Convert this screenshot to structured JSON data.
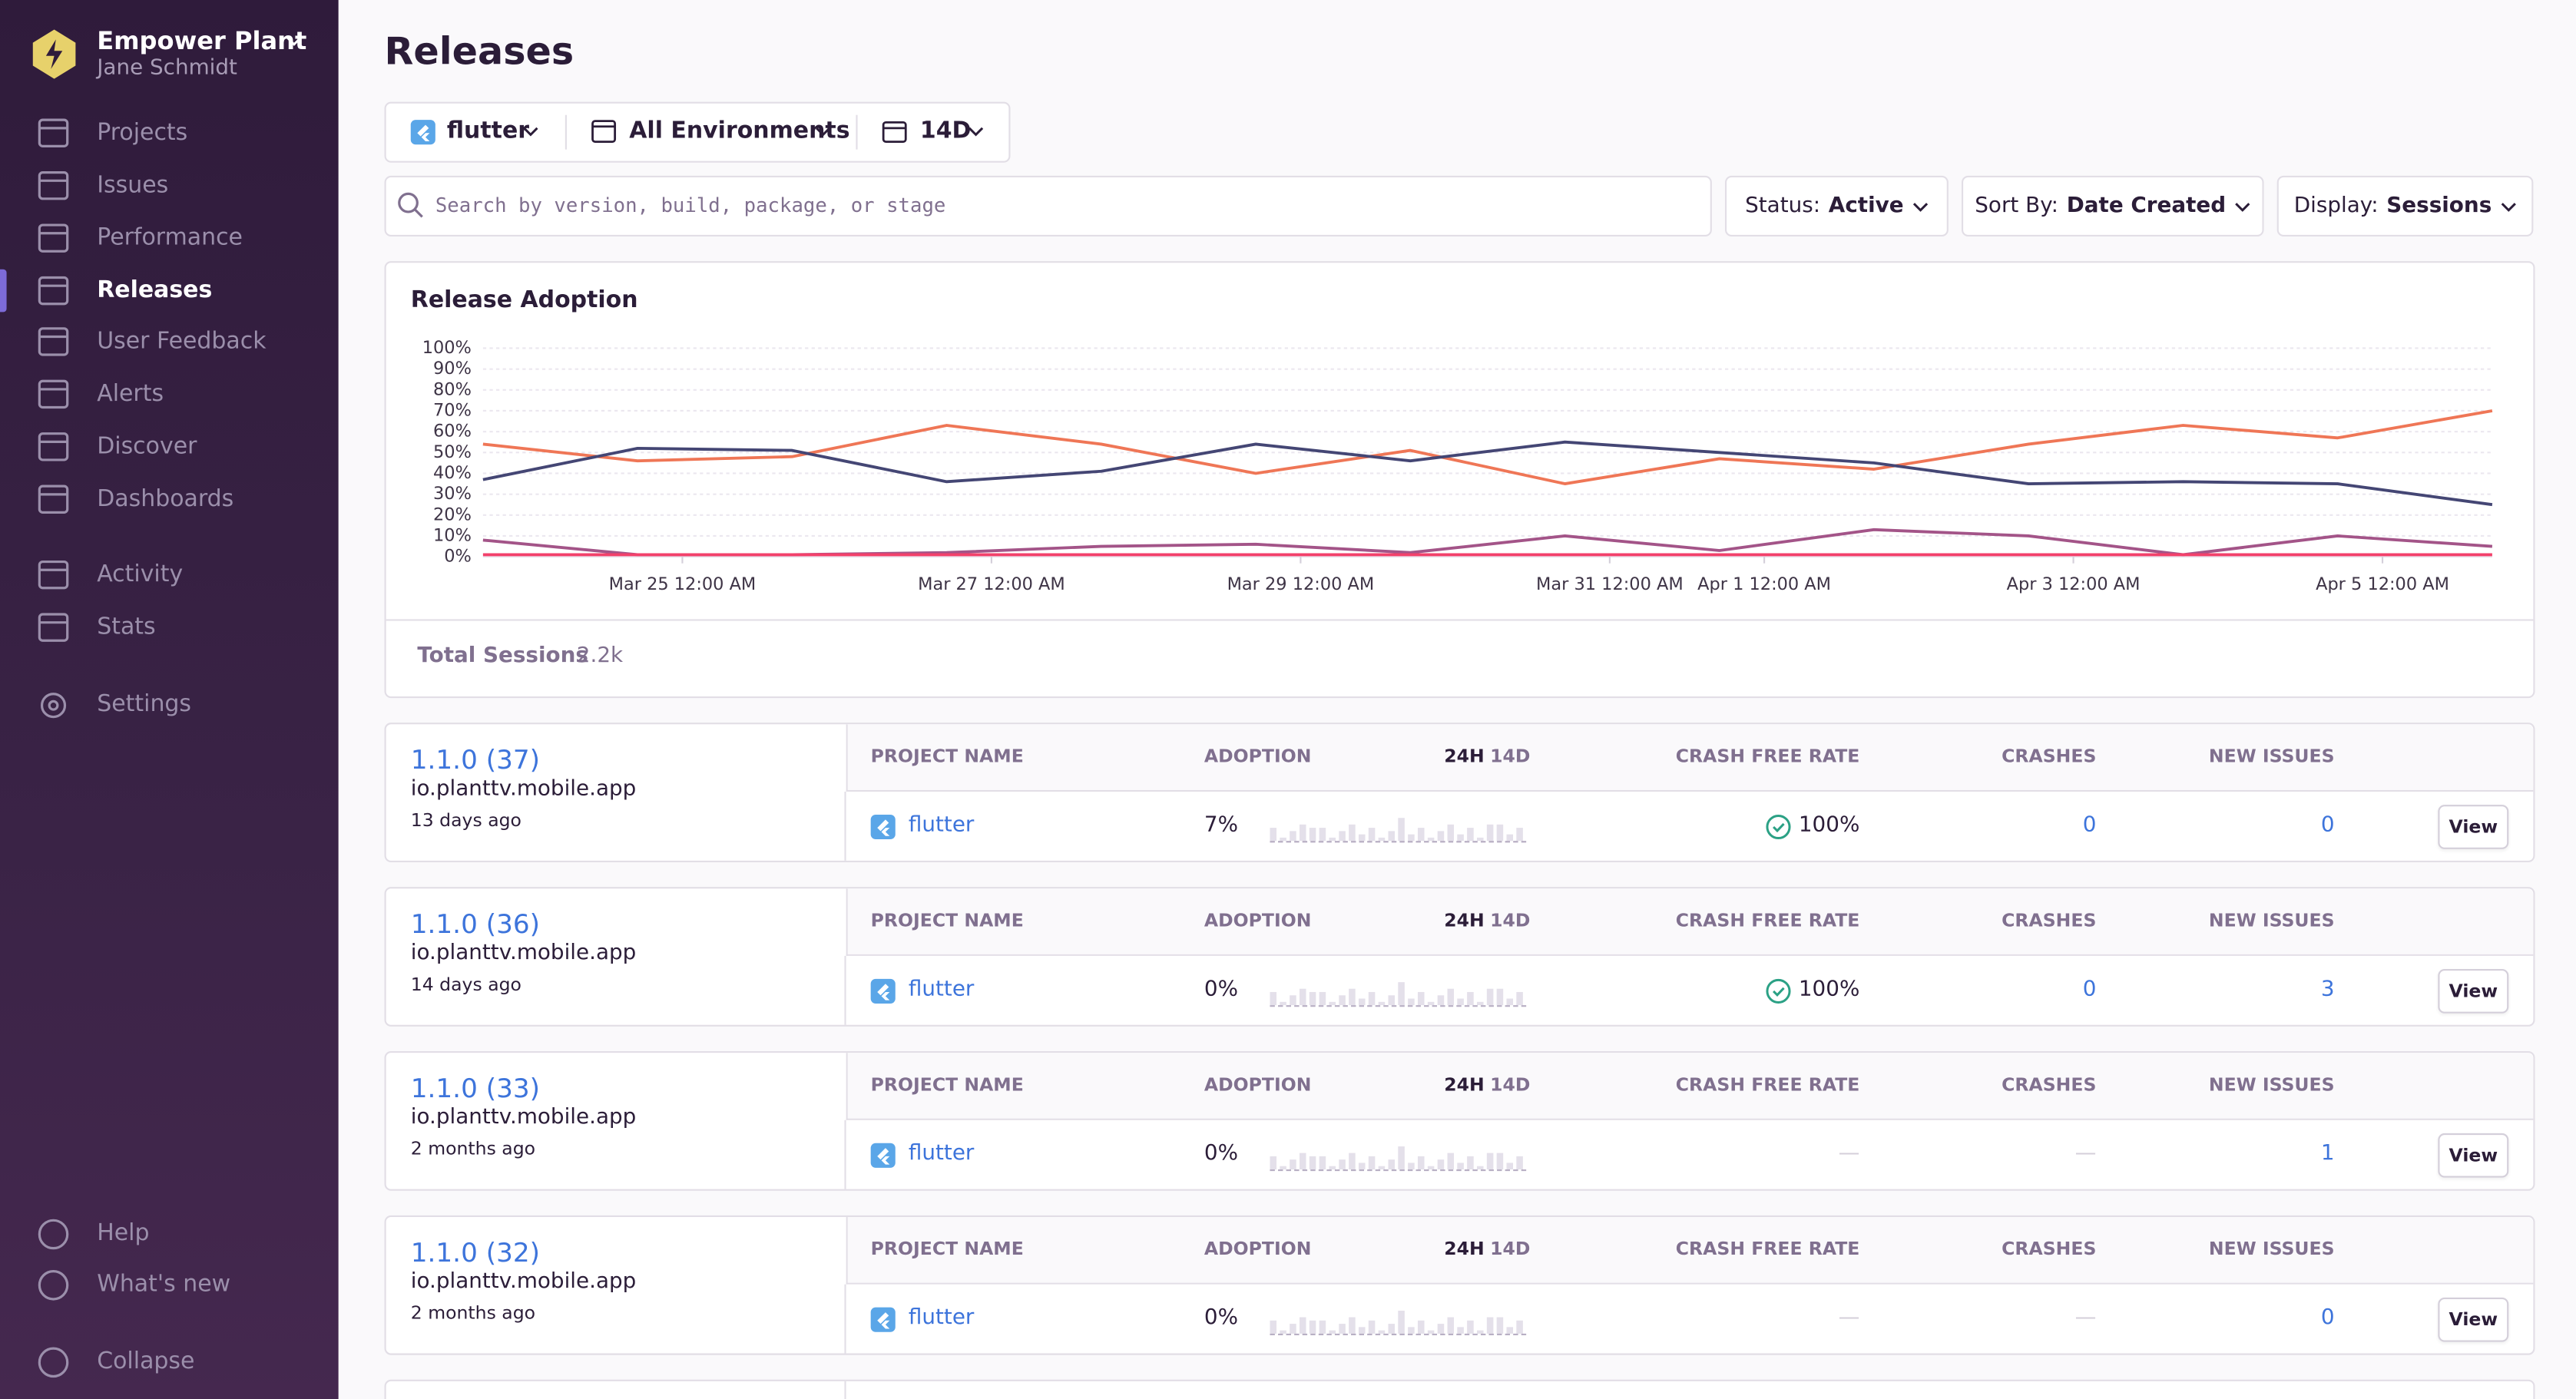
{
  "sidebar": {
    "org": "Empower Plant",
    "user": "Jane Schmidt",
    "nav": [
      "Projects",
      "Issues",
      "Performance",
      "Releases",
      "User Feedback",
      "Alerts",
      "Discover",
      "Dashboards"
    ],
    "nav2": [
      "Activity",
      "Stats"
    ],
    "nav3": [
      "Settings"
    ],
    "footer": [
      "Help",
      "What's new",
      "Collapse"
    ]
  },
  "header": {
    "title": "Releases",
    "project": "flutter",
    "environment": "All Environments",
    "period": "14D"
  },
  "search": {
    "placeholder": "Search by version, build, package, or stage"
  },
  "controls": [
    {
      "label": "Status:",
      "value": "Active"
    },
    {
      "label": "Sort By:",
      "value": "Date Created"
    },
    {
      "label": "Display:",
      "value": "Sessions"
    }
  ],
  "chart_data": {
    "type": "line",
    "title": "Release Adoption",
    "x": [
      0,
      1,
      2,
      3,
      4,
      5,
      6,
      7,
      8,
      9,
      10,
      11,
      12,
      13
    ],
    "xlim": [
      0,
      13
    ],
    "xticks": [
      {
        "value": 1.29,
        "label": "Mar 25 12:00 AM"
      },
      {
        "value": 3.29,
        "label": "Mar 27 12:00 AM"
      },
      {
        "value": 5.29,
        "label": "Mar 29 12:00 AM"
      },
      {
        "value": 7.29,
        "label": "Mar 31 12:00 AM"
      },
      {
        "value": 8.29,
        "label": "Apr 1 12:00 AM"
      },
      {
        "value": 10.29,
        "label": "Apr 3 12:00 AM"
      },
      {
        "value": 12.29,
        "label": "Apr 5 12:00 AM"
      }
    ],
    "ylim": [
      0,
      100
    ],
    "yticks": [
      {
        "value": 0,
        "label": "0%"
      },
      {
        "value": 10,
        "label": "10%"
      },
      {
        "value": 20,
        "label": "20%"
      },
      {
        "value": 30,
        "label": "30%"
      },
      {
        "value": 40,
        "label": "40%"
      },
      {
        "value": 50,
        "label": "50%"
      },
      {
        "value": 60,
        "label": "60%"
      },
      {
        "value": 70,
        "label": "70%"
      },
      {
        "value": 80,
        "label": "80%"
      },
      {
        "value": 90,
        "label": "90%"
      },
      {
        "value": 100,
        "label": "100%"
      }
    ],
    "grid": true,
    "series": [
      {
        "color": "#ef7656",
        "values": [
          54,
          46,
          48,
          63,
          54,
          40,
          51,
          35,
          47,
          42,
          54,
          63,
          57,
          70
        ]
      },
      {
        "color": "#444674",
        "values": [
          37,
          52,
          51,
          36,
          41,
          54,
          46,
          55,
          50,
          45,
          35,
          36,
          35,
          25
        ]
      },
      {
        "color": "#a35488",
        "values": [
          8,
          1,
          1,
          2,
          5,
          6,
          2,
          10,
          3,
          13,
          10,
          1,
          10,
          5
        ]
      },
      {
        "color": "#f2416b",
        "values": [
          1,
          1,
          1,
          1,
          1,
          1,
          1,
          1,
          1,
          1,
          1,
          1,
          1,
          1
        ]
      }
    ]
  },
  "summary": {
    "label": "Total Sessions",
    "value": "2.2k"
  },
  "release_columns": [
    "PROJECT NAME",
    "ADOPTION",
    "24H",
    "14D",
    "CRASH FREE RATE",
    "CRASHES",
    "NEW ISSUES"
  ],
  "releases": [
    {
      "version": "1.1.0 (37)",
      "package": "io.planttv.mobile.app",
      "age": "13 days ago",
      "project": "flutter",
      "adoption": "7%",
      "crash_free": "100%",
      "crashes": "0",
      "new_issues": "0",
      "action": "View"
    },
    {
      "version": "1.1.0 (36)",
      "package": "io.planttv.mobile.app",
      "age": "14 days ago",
      "project": "flutter",
      "adoption": "0%",
      "crash_free": "100%",
      "crashes": "0",
      "new_issues": "3",
      "action": "View"
    },
    {
      "version": "1.1.0 (33)",
      "package": "io.planttv.mobile.app",
      "age": "2 months ago",
      "project": "flutter",
      "adoption": "0%",
      "crash_free": "—",
      "crashes": "—",
      "new_issues": "1",
      "action": "View"
    },
    {
      "version": "1.1.0 (32)",
      "package": "io.planttv.mobile.app",
      "age": "2 months ago",
      "project": "flutter",
      "adoption": "0%",
      "crash_free": "—",
      "crashes": "—",
      "new_issues": "0",
      "action": "View"
    }
  ]
}
